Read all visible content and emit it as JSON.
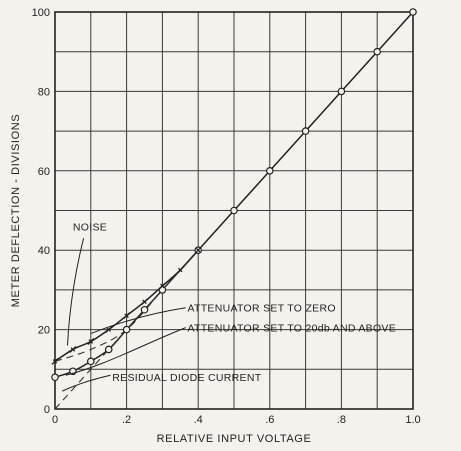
{
  "chart_data": {
    "type": "line",
    "title": "",
    "xlabel": "RELATIVE INPUT VOLTAGE",
    "ylabel": "METER DEFLECTION - DIVISIONS",
    "xlim": [
      0,
      1.0
    ],
    "ylim": [
      0,
      100
    ],
    "x_ticks": [
      {
        "value": 0,
        "label": "0"
      },
      {
        "value": 0.2,
        "label": ".2"
      },
      {
        "value": 0.4,
        "label": ".4"
      },
      {
        "value": 0.6,
        "label": ".6"
      },
      {
        "value": 0.8,
        "label": ".8"
      },
      {
        "value": 1.0,
        "label": "1.0"
      }
    ],
    "y_ticks": [
      {
        "value": 0,
        "label": "0"
      },
      {
        "value": 20,
        "label": "20"
      },
      {
        "value": 40,
        "label": "40"
      },
      {
        "value": 60,
        "label": "60"
      },
      {
        "value": 80,
        "label": "80"
      },
      {
        "value": 100,
        "label": "100"
      }
    ],
    "grid": true,
    "series": [
      {
        "name": "",
        "marker": "circle",
        "x": [
          0.0,
          0.05,
          0.1,
          0.15,
          0.2,
          0.25,
          0.3,
          0.4,
          0.5,
          0.6,
          0.7,
          0.8,
          0.9,
          1.0
        ],
        "y": [
          8,
          9.5,
          12,
          15,
          20,
          25,
          30,
          40,
          50,
          60,
          70,
          80,
          90,
          100
        ]
      },
      {
        "name": "",
        "marker": "cross",
        "x": [
          0.0,
          0.05,
          0.1,
          0.15,
          0.2,
          0.25,
          0.3,
          0.35,
          0.4
        ],
        "y": [
          12,
          15,
          17,
          20,
          23.5,
          27,
          31,
          35,
          40
        ]
      },
      {
        "name": "",
        "marker": "none",
        "style": "dashed",
        "x": [
          0.0,
          0.1,
          0.2,
          0.3,
          0.4
        ],
        "y": [
          0,
          10,
          20,
          30,
          40
        ]
      },
      {
        "name": "",
        "marker": "none",
        "style": "dashed",
        "x": [
          0.0,
          0.1,
          0.2,
          0.3,
          0.4
        ],
        "y": [
          12,
          15,
          20,
          30,
          40
        ]
      }
    ],
    "annotations": [
      {
        "text": "NOISE"
      },
      {
        "text": "ATTENUATOR SET TO ZERO"
      },
      {
        "text": "ATTENUATOR SET TO 20db AND ABOVE"
      },
      {
        "text": "RESIDUAL DIODE CURRENT"
      }
    ]
  }
}
